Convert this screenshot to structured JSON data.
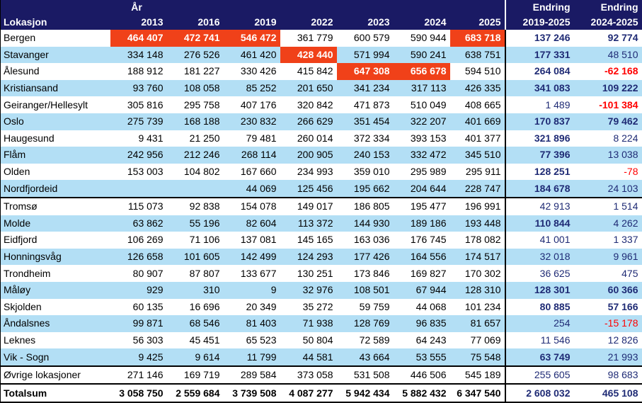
{
  "table": {
    "location_header": "Lokasjon",
    "year_group_header": "År",
    "change_header": "Endring",
    "years": [
      "2013",
      "2016",
      "2019",
      "2022",
      "2023",
      "2024",
      "2025"
    ],
    "change_ranges": [
      "2019-2025",
      "2024-2025"
    ]
  },
  "colors": {
    "header_bg": "#1A1A64",
    "stripe": "#B3DFF5",
    "highlight": "#F04119",
    "change_text": "#1F2B75",
    "negative": "#FF0000"
  },
  "chart_data": {
    "type": "table",
    "columns": [
      "Lokasjon",
      "2013",
      "2016",
      "2019",
      "2022",
      "2023",
      "2024",
      "2025",
      "Endring 2019-2025",
      "Endring 2024-2025"
    ],
    "rows": [
      {
        "name": "Bergen",
        "values": [
          464407,
          472741,
          546472,
          361779,
          600579,
          590944,
          683718
        ],
        "changes": [
          137246,
          92774
        ],
        "changes_bold": [
          true,
          true
        ],
        "highlight_cols": [
          0,
          1,
          2,
          6
        ]
      },
      {
        "name": "Stavanger",
        "values": [
          334148,
          276526,
          461420,
          428440,
          571994,
          590241,
          638751
        ],
        "changes": [
          177331,
          48510
        ],
        "changes_bold": [
          true,
          false
        ],
        "highlight_cols": [
          3
        ]
      },
      {
        "name": "Ålesund",
        "values": [
          188912,
          181227,
          330426,
          415842,
          647308,
          656678,
          594510
        ],
        "changes": [
          264084,
          -62168
        ],
        "changes_bold": [
          true,
          true
        ],
        "highlight_cols": [
          4,
          5
        ]
      },
      {
        "name": "Kristiansand",
        "values": [
          93760,
          108058,
          85252,
          201650,
          341234,
          317113,
          426335
        ],
        "changes": [
          341083,
          109222
        ],
        "changes_bold": [
          true,
          true
        ],
        "highlight_cols": []
      },
      {
        "name": "Geiranger/Hellesylt",
        "values": [
          305816,
          295758,
          407176,
          320842,
          471873,
          510049,
          408665
        ],
        "changes": [
          1489,
          -101384
        ],
        "changes_bold": [
          false,
          true
        ],
        "highlight_cols": []
      },
      {
        "name": "Oslo",
        "values": [
          275739,
          168188,
          230832,
          266629,
          351454,
          322207,
          401669
        ],
        "changes": [
          170837,
          79462
        ],
        "changes_bold": [
          true,
          true
        ],
        "highlight_cols": []
      },
      {
        "name": "Haugesund",
        "values": [
          9431,
          21250,
          79481,
          260014,
          372334,
          393153,
          401377
        ],
        "changes": [
          321896,
          8224
        ],
        "changes_bold": [
          true,
          false
        ],
        "highlight_cols": []
      },
      {
        "name": "Flåm",
        "values": [
          242956,
          212246,
          268114,
          200905,
          240153,
          332472,
          345510
        ],
        "changes": [
          77396,
          13038
        ],
        "changes_bold": [
          true,
          false
        ],
        "highlight_cols": []
      },
      {
        "name": "Olden",
        "values": [
          153003,
          104802,
          167660,
          234993,
          359010,
          295989,
          295911
        ],
        "changes": [
          128251,
          -78
        ],
        "changes_bold": [
          true,
          false
        ],
        "highlight_cols": []
      },
      {
        "name": "Nordfjordeid",
        "values": [
          null,
          null,
          44069,
          125456,
          195662,
          204644,
          228747
        ],
        "changes": [
          184678,
          24103
        ],
        "changes_bold": [
          true,
          false
        ],
        "highlight_cols": [],
        "group_end": true
      },
      {
        "name": "Tromsø",
        "values": [
          115073,
          92838,
          154078,
          149017,
          186805,
          195477,
          196991
        ],
        "changes": [
          42913,
          1514
        ],
        "changes_bold": [
          false,
          false
        ],
        "highlight_cols": []
      },
      {
        "name": "Molde",
        "values": [
          63862,
          55196,
          82604,
          113372,
          144930,
          189186,
          193448
        ],
        "changes": [
          110844,
          4262
        ],
        "changes_bold": [
          true,
          false
        ],
        "highlight_cols": []
      },
      {
        "name": "Eidfjord",
        "values": [
          106269,
          71106,
          137081,
          145165,
          163036,
          176745,
          178082
        ],
        "changes": [
          41001,
          1337
        ],
        "changes_bold": [
          false,
          false
        ],
        "highlight_cols": []
      },
      {
        "name": "Honningsvåg",
        "values": [
          126658,
          101605,
          142499,
          124293,
          177426,
          164556,
          174517
        ],
        "changes": [
          32018,
          9961
        ],
        "changes_bold": [
          false,
          false
        ],
        "highlight_cols": []
      },
      {
        "name": "Trondheim",
        "values": [
          80907,
          87807,
          133677,
          130251,
          173846,
          169827,
          170302
        ],
        "changes": [
          36625,
          475
        ],
        "changes_bold": [
          false,
          false
        ],
        "highlight_cols": []
      },
      {
        "name": "Måløy",
        "values": [
          929,
          310,
          9,
          32976,
          108501,
          67944,
          128310
        ],
        "changes": [
          128301,
          60366
        ],
        "changes_bold": [
          true,
          true
        ],
        "highlight_cols": []
      },
      {
        "name": "Skjolden",
        "values": [
          60135,
          16696,
          20349,
          35272,
          59759,
          44068,
          101234
        ],
        "changes": [
          80885,
          57166
        ],
        "changes_bold": [
          true,
          true
        ],
        "highlight_cols": []
      },
      {
        "name": "Åndalsnes",
        "values": [
          99871,
          68546,
          81403,
          71938,
          128769,
          96835,
          81657
        ],
        "changes": [
          254,
          -15178
        ],
        "changes_bold": [
          false,
          false
        ],
        "highlight_cols": []
      },
      {
        "name": "Leknes",
        "values": [
          56303,
          45451,
          65523,
          50804,
          72589,
          64243,
          77069
        ],
        "changes": [
          11546,
          12826
        ],
        "changes_bold": [
          false,
          false
        ],
        "highlight_cols": []
      },
      {
        "name": "Vik - Sogn",
        "values": [
          9425,
          9614,
          11799,
          44581,
          43664,
          53555,
          75548
        ],
        "changes": [
          63749,
          21993
        ],
        "changes_bold": [
          true,
          false
        ],
        "highlight_cols": [],
        "group_end": true
      },
      {
        "name": "Øvrige lokasjoner",
        "values": [
          271146,
          169719,
          289584,
          373058,
          531508,
          446506,
          545189
        ],
        "changes": [
          255605,
          98683
        ],
        "changes_bold": [
          false,
          false
        ],
        "highlight_cols": [],
        "group_end": true
      }
    ],
    "total": {
      "name": "Totalsum",
      "values": [
        3058750,
        2559684,
        3739508,
        4087277,
        5942434,
        5882432,
        6347540
      ],
      "changes": [
        2608032,
        465108
      ],
      "changes_bold": [
        true,
        true
      ]
    }
  }
}
